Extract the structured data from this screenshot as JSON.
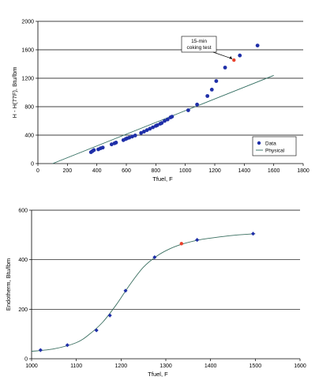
{
  "chart_data": [
    {
      "type": "scatter",
      "xlabel": "Tfuel, F",
      "ylabel": "H - H(77F), Btu/lbm",
      "xlim": [
        0,
        1800
      ],
      "ylim": [
        0,
        2000
      ],
      "xticks": [
        0,
        200,
        400,
        600,
        800,
        1000,
        1200,
        1400,
        1600,
        1800
      ],
      "yticks": [
        0,
        400,
        800,
        1200,
        1600,
        2000
      ],
      "grid": "horizontal",
      "legend": {
        "placement": "bottom-right",
        "entries": [
          "Data",
          "Physical"
        ]
      },
      "annotation": {
        "text": [
          "15-min",
          "coking test"
        ],
        "target": [
          1330,
          1455
        ]
      },
      "series": [
        {
          "name": "Data",
          "kind": "points",
          "color": "#1f2fa8",
          "x": [
            360,
            370,
            380,
            410,
            425,
            440,
            500,
            520,
            530,
            580,
            595,
            605,
            620,
            640,
            660,
            700,
            720,
            740,
            760,
            780,
            800,
            810,
            830,
            840,
            860,
            880,
            900,
            910,
            1020,
            1080,
            1150,
            1180,
            1210,
            1270,
            1370,
            1490
          ],
          "y": [
            160,
            175,
            190,
            200,
            215,
            225,
            270,
            285,
            295,
            330,
            345,
            355,
            365,
            380,
            395,
            430,
            450,
            470,
            490,
            510,
            530,
            540,
            560,
            570,
            600,
            620,
            650,
            660,
            750,
            830,
            950,
            1040,
            1160,
            1350,
            1520,
            1660
          ]
        },
        {
          "name": "15-min coking test",
          "kind": "highlight",
          "color": "#e8412c",
          "x": [
            1330
          ],
          "y": [
            1455
          ]
        },
        {
          "name": "Physical",
          "kind": "line",
          "color": "#2e6b5e",
          "x": [
            100,
            1600
          ],
          "y": [
            0,
            1240
          ]
        }
      ]
    },
    {
      "type": "line",
      "xlabel": "Tfuel, F",
      "ylabel": "Endotherm, Btu/lbm",
      "xlim": [
        1000,
        1600
      ],
      "ylim": [
        0,
        600
      ],
      "xticks": [
        1000,
        1100,
        1200,
        1300,
        1400,
        1500,
        1600
      ],
      "yticks": [
        0,
        200,
        400,
        600
      ],
      "grid": "horizontal",
      "series": [
        {
          "name": "Endotherm",
          "kind": "points",
          "color": "#1f2fa8",
          "x": [
            1020,
            1080,
            1145,
            1175,
            1210,
            1275,
            1370,
            1495
          ],
          "y": [
            35,
            55,
            115,
            175,
            275,
            410,
            480,
            505
          ]
        },
        {
          "name": "15-min coking test",
          "kind": "highlight",
          "color": "#e8412c",
          "x": [
            1335
          ],
          "y": [
            465
          ]
        },
        {
          "name": "fit",
          "kind": "line",
          "color": "#3a6f60",
          "x": [
            1000,
            1050,
            1100,
            1130,
            1160,
            1190,
            1220,
            1250,
            1280,
            1310,
            1340,
            1380,
            1420,
            1460,
            1500
          ],
          "y": [
            30,
            40,
            65,
            100,
            150,
            220,
            300,
            370,
            415,
            445,
            465,
            482,
            492,
            500,
            505
          ]
        }
      ]
    }
  ]
}
